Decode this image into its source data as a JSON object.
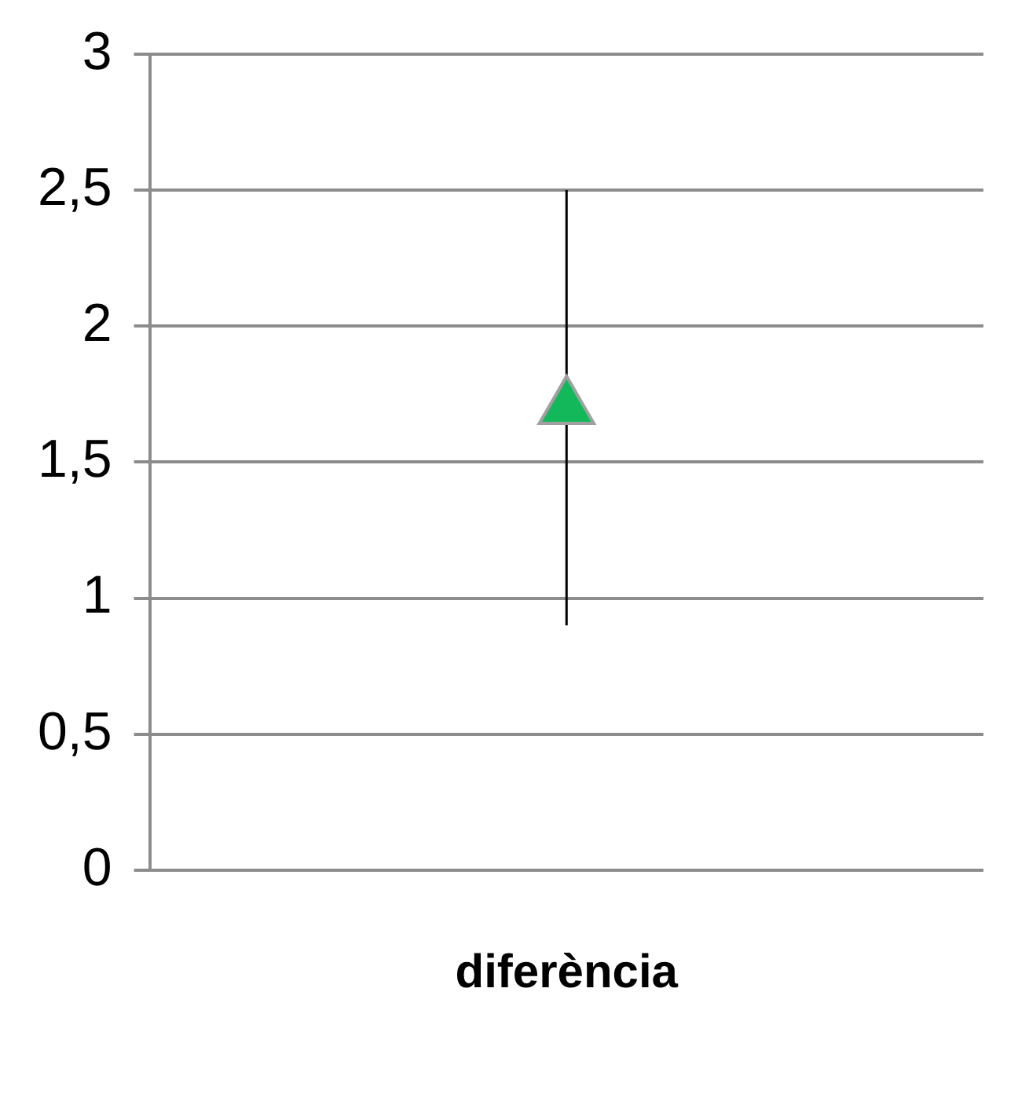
{
  "chart_data": {
    "type": "scatter",
    "categories": [
      "diferència"
    ],
    "series": [
      {
        "color": "#12b85a",
        "values": [
          1.7
        ],
        "errors": [
          [
            0.9,
            2.5
          ]
        ]
      }
    ],
    "ylim": [
      0,
      3
    ],
    "yticks": [
      0,
      {
        "value": 0.5,
        "label": "0,5"
      },
      1,
      {
        "value": 1.5,
        "label": "1,5"
      },
      2,
      {
        "value": 2.5,
        "label": "2,5"
      },
      3
    ],
    "grid": "y",
    "marker": "triangle"
  }
}
